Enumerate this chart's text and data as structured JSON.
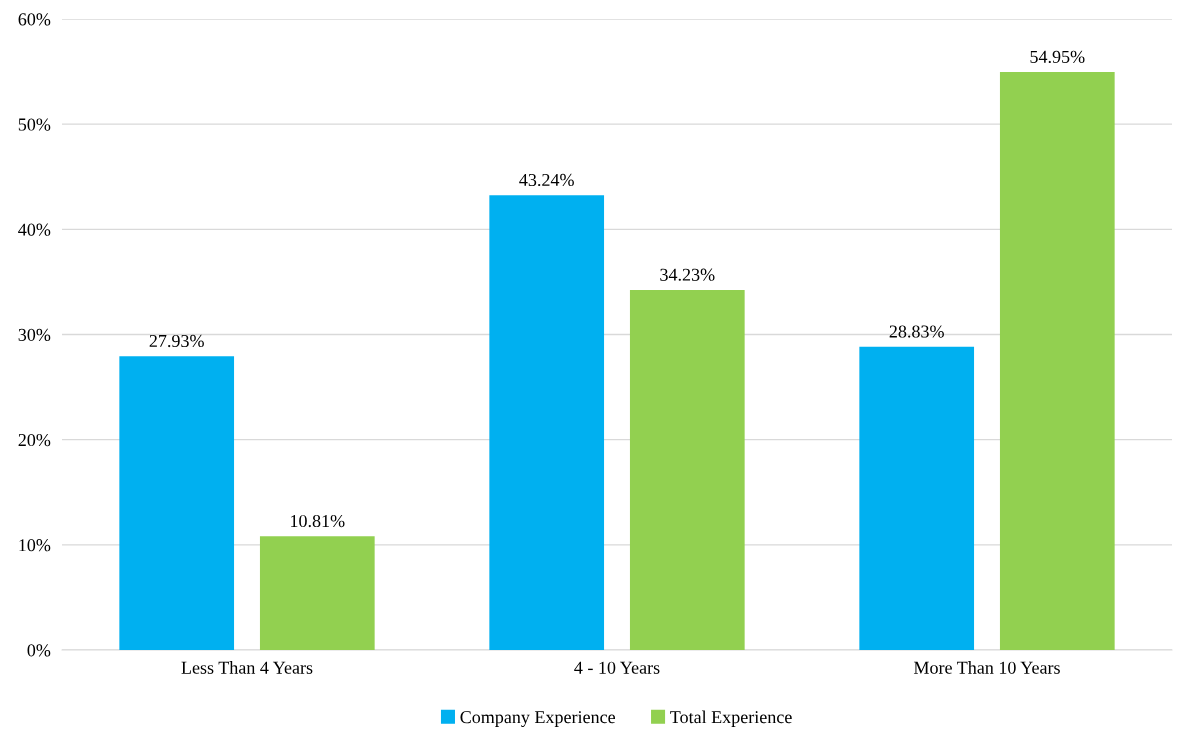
{
  "chart_data": {
    "type": "bar",
    "categories": [
      "Less Than 4 Years",
      "4 - 10 Years",
      "More Than 10 Years"
    ],
    "series": [
      {
        "name": "Company Experience",
        "color": "#00b0f0",
        "values": [
          27.93,
          43.24,
          28.83
        ],
        "value_labels": [
          "27.93%",
          "43.24%",
          "28.83%"
        ]
      },
      {
        "name": "Total Experience",
        "color": "#92d050",
        "values": [
          10.81,
          34.23,
          54.95
        ],
        "value_labels": [
          "10.81%",
          "34.23%",
          "54.95%"
        ]
      }
    ],
    "ylim": [
      0,
      60
    ],
    "yticks": [
      {
        "value": 0,
        "label": "0%"
      },
      {
        "value": 10,
        "label": "10%"
      },
      {
        "value": 20,
        "label": "20%"
      },
      {
        "value": 30,
        "label": "30%"
      },
      {
        "value": 40,
        "label": "40%"
      },
      {
        "value": 50,
        "label": "50%"
      },
      {
        "value": 60,
        "label": "60%"
      }
    ],
    "grid": "y",
    "legend": "bottom"
  }
}
